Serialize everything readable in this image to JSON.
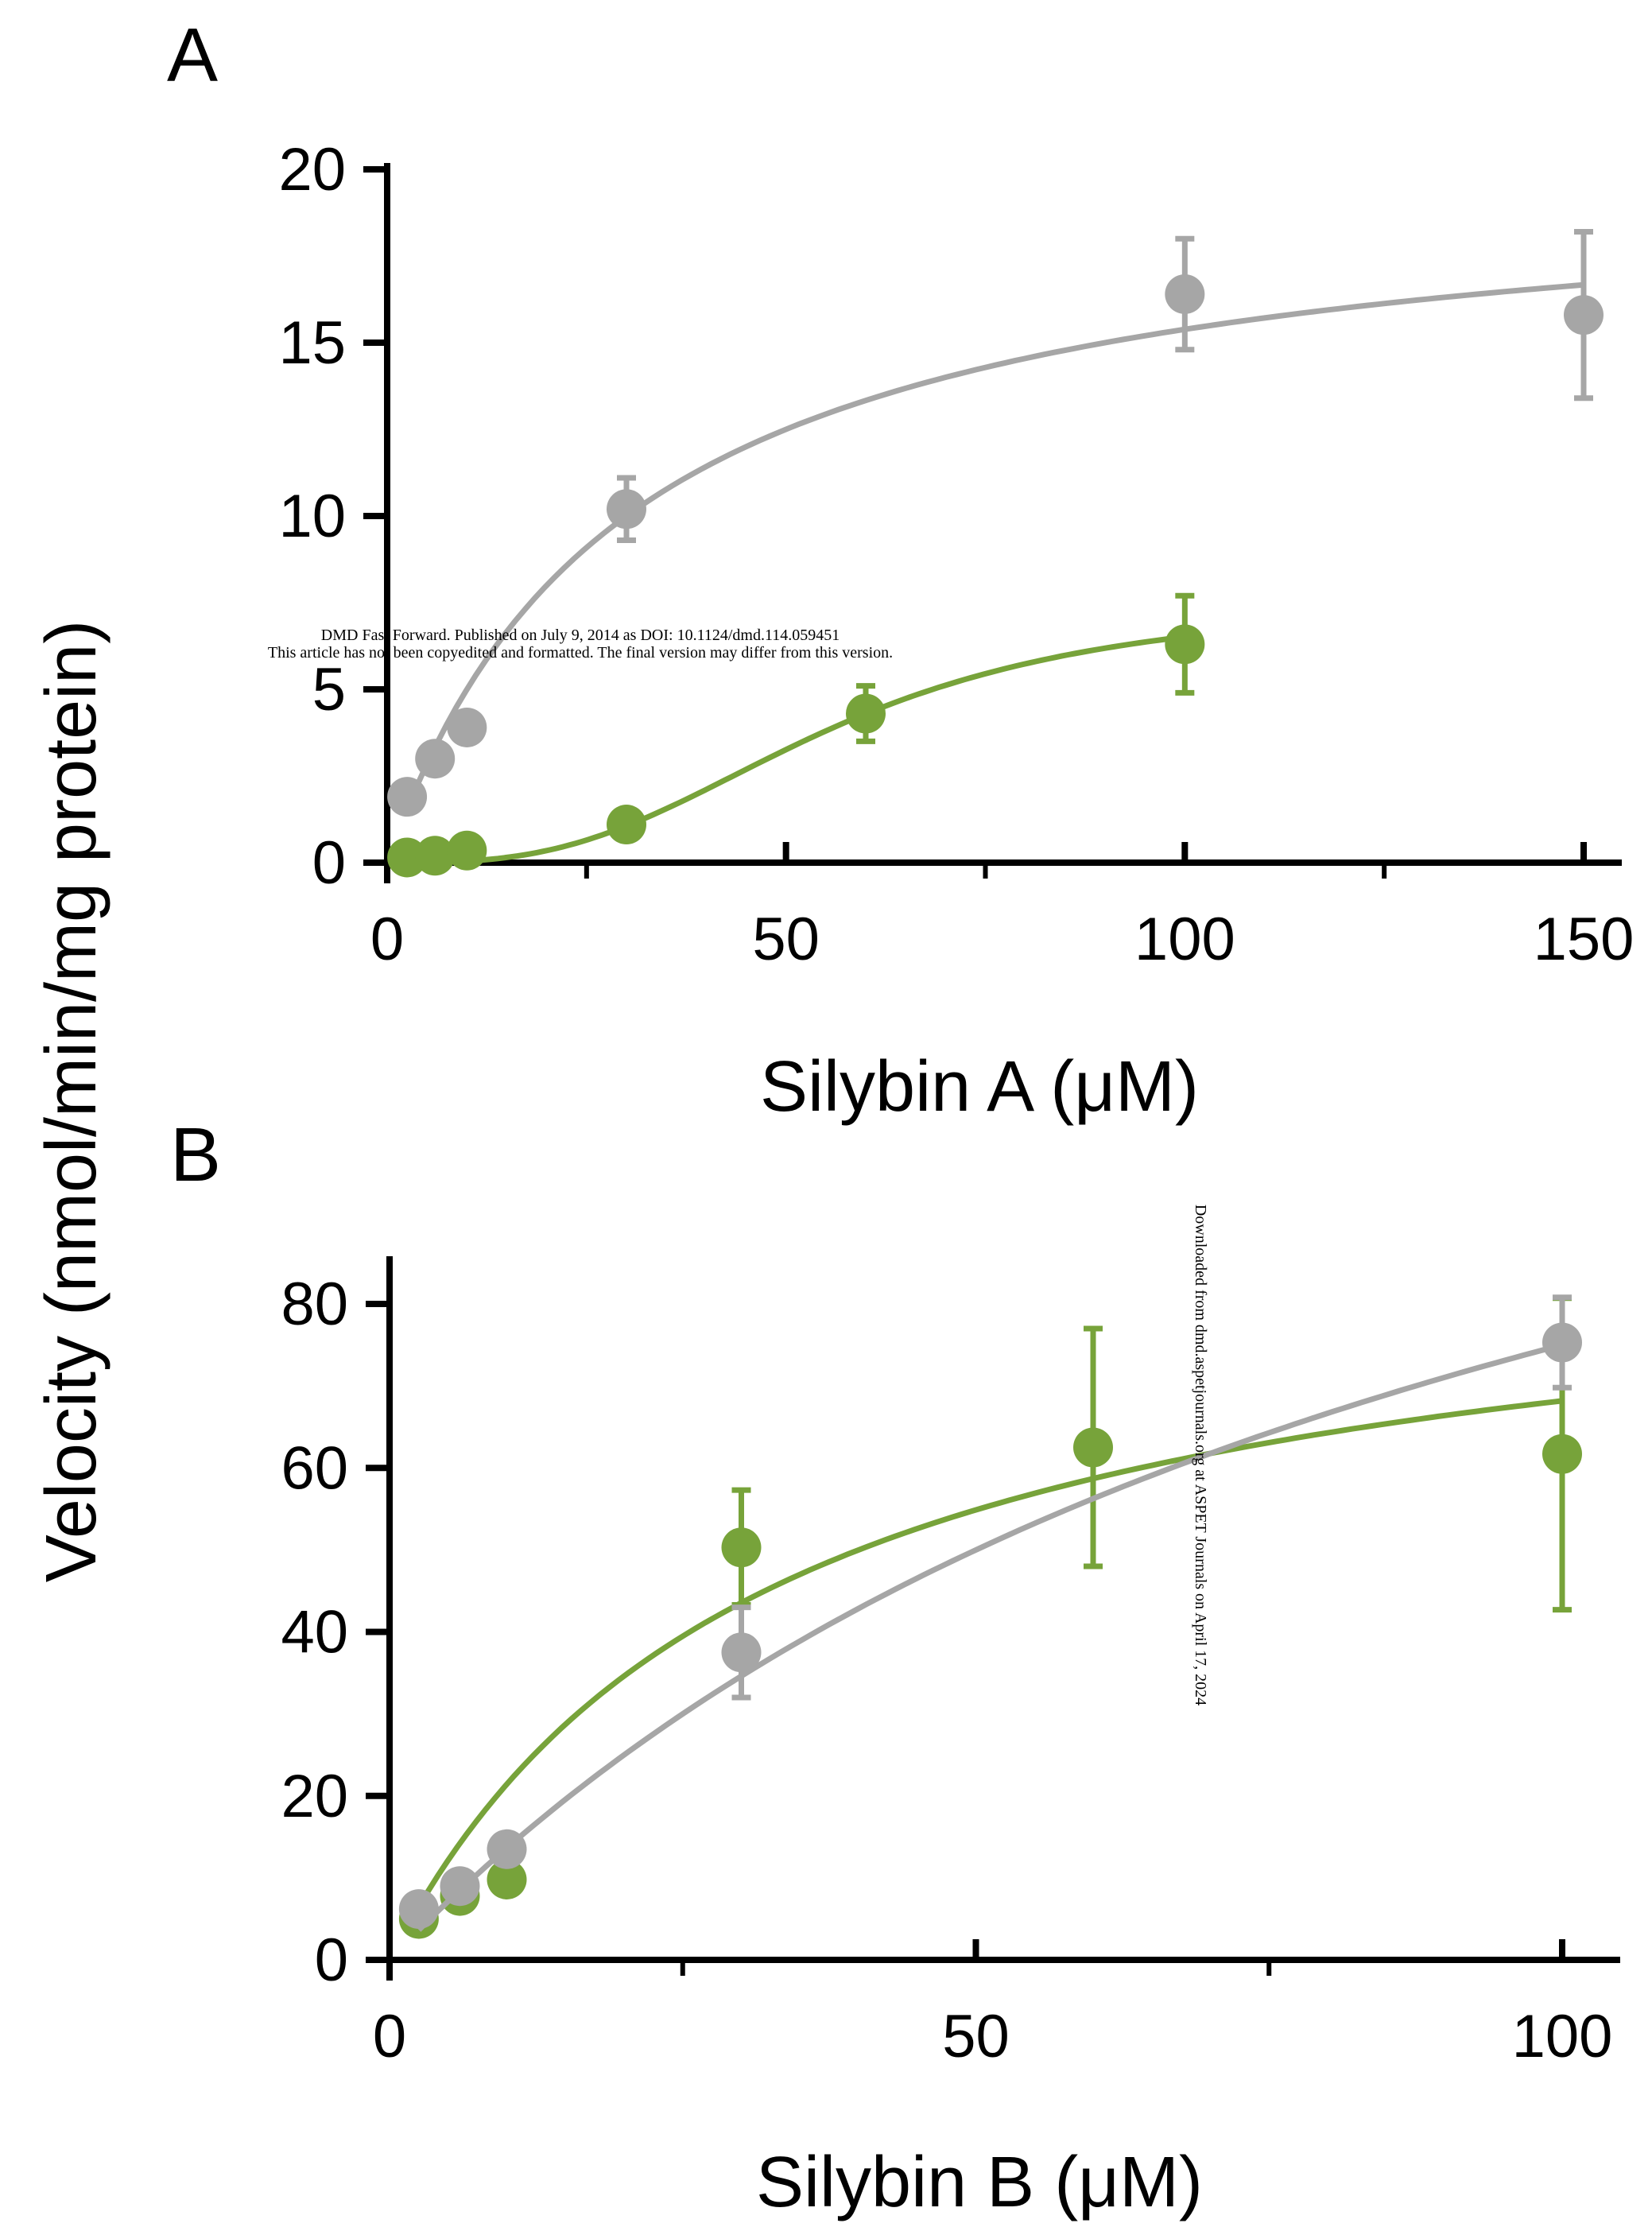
{
  "figure": {
    "ylabel": "Velocity (nmol/min/mg protein)",
    "watermark_top_line1": "DMD Fast Forward. Published on July 9, 2014 as DOI: 10.1124/dmd.114.059451",
    "watermark_top_line2": "This article has not been copyedited and formatted. The final version may differ from this version.",
    "watermark_side": "Downloaded from dmd.aspetjournals.org at ASPET Journals on April 17, 2024"
  },
  "colors": {
    "gray": "#a6a6a6",
    "green": "#77a33a",
    "axis": "#000000"
  },
  "chart_data": [
    {
      "panel": "A",
      "type": "scatter",
      "xlabel": "Silybin A (μM)",
      "ylabel": "Velocity (nmol/min/mg protein)",
      "xlim": [
        0,
        150
      ],
      "ylim": [
        0,
        20
      ],
      "xticks": [
        0,
        50,
        100,
        150
      ],
      "xminor": [
        25,
        75,
        125
      ],
      "yticks": [
        0,
        5,
        10,
        15,
        20
      ],
      "series": [
        {
          "color_key": "gray",
          "x": [
            2.5,
            6,
            10,
            30,
            100,
            150
          ],
          "y": [
            1.9,
            3.0,
            3.9,
            10.2,
            16.4,
            15.8
          ],
          "err": [
            0,
            0,
            0,
            0.9,
            1.6,
            2.4
          ],
          "fit": {
            "model": "michaelis-menten",
            "vmax": 20.0,
            "km": 30
          }
        },
        {
          "color_key": "green",
          "x": [
            2.5,
            6,
            10,
            30,
            60,
            100
          ],
          "y": [
            0.15,
            0.2,
            0.35,
            1.1,
            4.3,
            6.3
          ],
          "err": [
            0,
            0,
            0,
            0,
            0.8,
            1.4
          ],
          "fit": {
            "model": "hill",
            "vmax": 7.6,
            "k": 55,
            "n": 3.0
          }
        }
      ]
    },
    {
      "panel": "B",
      "type": "scatter",
      "xlabel": "Silybin B (μM)",
      "ylabel": "Velocity (nmol/min/mg protein)",
      "xlim": [
        0,
        100
      ],
      "ylim": [
        0,
        80
      ],
      "xticks": [
        0,
        50,
        100
      ],
      "xminor": [
        25,
        75
      ],
      "yticks": [
        0,
        20,
        40,
        60,
        80
      ],
      "series": [
        {
          "color_key": "green",
          "x": [
            2.5,
            6,
            10,
            30,
            60,
            100
          ],
          "y": [
            5.0,
            7.8,
            9.8,
            50.3,
            62.5,
            61.7
          ],
          "err": [
            0,
            0,
            0,
            7.0,
            14.5,
            19.0
          ],
          "fit": {
            "model": "michaelis-menten",
            "vmax": 90.0,
            "km": 32
          }
        },
        {
          "color_key": "gray",
          "x": [
            2.5,
            6,
            10,
            30,
            100
          ],
          "y": [
            6.2,
            9.0,
            13.5,
            37.5,
            75.3
          ],
          "err": [
            0,
            0,
            0,
            5.5,
            5.5
          ],
          "fit": {
            "model": "michaelis-menten",
            "vmax": 150.0,
            "km": 100
          }
        }
      ]
    }
  ]
}
